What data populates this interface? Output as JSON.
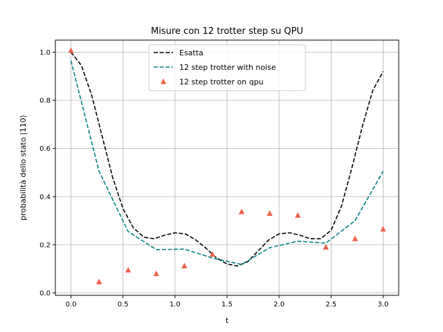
{
  "chart_data": {
    "type": "line",
    "title": "Misure con 12 trotter step su QPU",
    "xlabel": "t",
    "ylabel": "probabilità dello stato |110⟩",
    "xlim": [
      -0.15,
      3.15
    ],
    "ylim": [
      -0.01,
      1.05
    ],
    "xticks": [
      0.0,
      0.5,
      1.0,
      1.5,
      2.0,
      2.5,
      3.0
    ],
    "xtick_labels": [
      "0.0",
      "0.5",
      "1.0",
      "1.5",
      "2.0",
      "2.5",
      "3.0"
    ],
    "yticks": [
      0.0,
      0.2,
      0.4,
      0.6,
      0.8,
      1.0
    ],
    "ytick_labels": [
      "0.0",
      "0.2",
      "0.4",
      "0.6",
      "0.8",
      "1.0"
    ],
    "grid": true,
    "legend_position": "top-center",
    "series": [
      {
        "name": "Esatta",
        "style": "dashed",
        "color": "#000000",
        "x": [
          0.0,
          0.1,
          0.2,
          0.3,
          0.4,
          0.5,
          0.6,
          0.7,
          0.8,
          0.9,
          1.0,
          1.1,
          1.2,
          1.3,
          1.4,
          1.5,
          1.6,
          1.7,
          1.8,
          1.9,
          2.0,
          2.1,
          2.2,
          2.3,
          2.4,
          2.5,
          2.6,
          2.7,
          2.8,
          2.9,
          3.0
        ],
        "y": [
          1.0,
          0.945,
          0.82,
          0.65,
          0.48,
          0.35,
          0.27,
          0.232,
          0.225,
          0.24,
          0.25,
          0.245,
          0.22,
          0.185,
          0.145,
          0.12,
          0.112,
          0.13,
          0.175,
          0.22,
          0.245,
          0.25,
          0.24,
          0.225,
          0.225,
          0.26,
          0.36,
          0.52,
          0.69,
          0.84,
          0.92
        ]
      },
      {
        "name": "12 step trotter with noise",
        "style": "dashed",
        "color": "#008080",
        "x": [
          0.0,
          0.27,
          0.55,
          0.82,
          1.09,
          1.36,
          1.64,
          1.91,
          2.18,
          2.45,
          2.73,
          3.0
        ],
        "y": [
          0.965,
          0.505,
          0.255,
          0.18,
          0.182,
          0.145,
          0.118,
          0.188,
          0.215,
          0.207,
          0.3,
          0.505
        ]
      },
      {
        "name": "12 step trotter on qpu",
        "style": "triangle-markers",
        "color": "#f0604a",
        "x": [
          0.0,
          0.27,
          0.55,
          0.82,
          1.09,
          1.36,
          1.64,
          1.91,
          2.18,
          2.45,
          2.73,
          3.0
        ],
        "y": [
          1.007,
          0.046,
          0.095,
          0.08,
          0.112,
          0.16,
          0.337,
          0.33,
          0.322,
          0.19,
          0.225,
          0.265
        ]
      }
    ]
  }
}
